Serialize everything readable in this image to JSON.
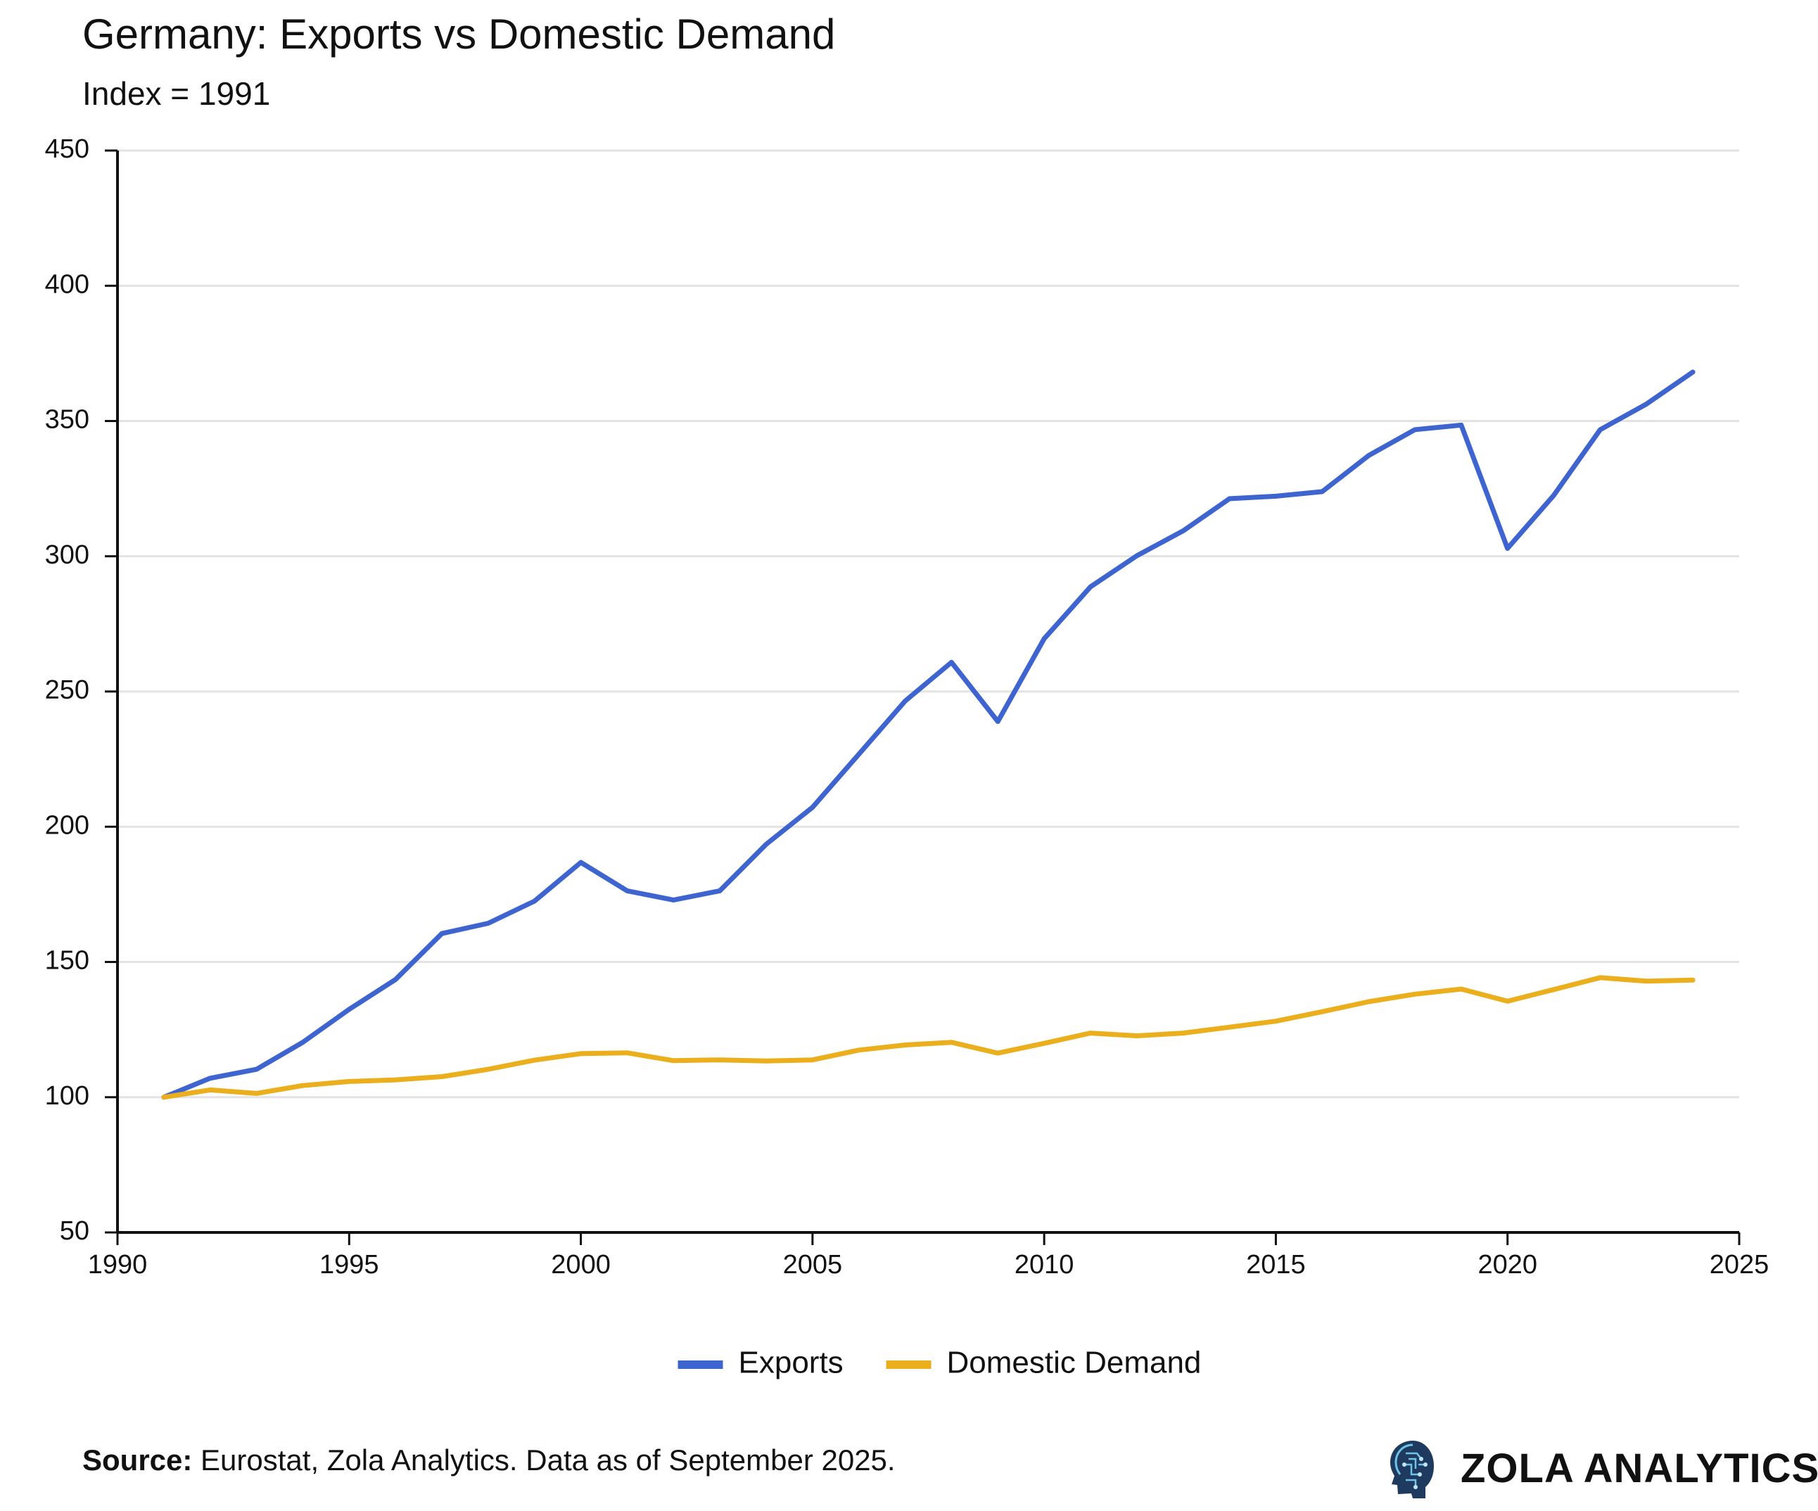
{
  "title": "Germany: Exports vs Domestic Demand",
  "subtitle": "Index = 1991",
  "source": {
    "label": "Source:",
    "text": " Eurostat, Zola Analytics. Data as of September 2025."
  },
  "brand": {
    "name": "ZOLA ANALYTICS",
    "logo_icon": "ai-head-icon"
  },
  "colors": {
    "exports": "#3D64CF",
    "domestic": "#EBAF1E",
    "grid": "#e3e3e3",
    "axis": "#111111"
  },
  "chart_data": {
    "type": "line",
    "title": "Germany: Exports vs Domestic Demand",
    "subtitle": "Index = 1991",
    "xlabel": "",
    "ylabel": "",
    "xlim": [
      1990,
      2025
    ],
    "ylim": [
      50,
      450
    ],
    "x_ticks": [
      1990,
      1995,
      2000,
      2005,
      2010,
      2015,
      2020,
      2025
    ],
    "y_ticks": [
      50,
      100,
      150,
      200,
      250,
      300,
      350,
      400,
      450
    ],
    "grid": "horizontal",
    "legend_position": "bottom-center",
    "x": [
      1991,
      1992,
      1993,
      1994,
      1995,
      1996,
      1997,
      1998,
      1999,
      2000,
      2001,
      2002,
      2003,
      2004,
      2005,
      2006,
      2007,
      2008,
      2009,
      2010,
      2011,
      2012,
      2013,
      2014,
      2015,
      2016,
      2017,
      2018,
      2019,
      2020,
      2021,
      2022,
      2023,
      2024
    ],
    "series": [
      {
        "name": "Exports",
        "color": "#3D64CF",
        "values": [
          100,
          107,
          110.3,
          120.3,
          132.5,
          143.5,
          160.5,
          164.3,
          172.5,
          186.8,
          176.3,
          172.9,
          176.3,
          193.5,
          207.2,
          226.8,
          246.5,
          260.8,
          238.9,
          269.5,
          288.7,
          300.2,
          309.4,
          321.3,
          322.2,
          323.9,
          337.2,
          346.8,
          348.5,
          302.9,
          322.6,
          346.8,
          356.3,
          368.1
        ]
      },
      {
        "name": "Domestic Demand",
        "color": "#EBAF1E",
        "values": [
          100,
          102.7,
          101.4,
          104.3,
          105.8,
          106.4,
          107.6,
          110.3,
          113.7,
          116.1,
          116.4,
          113.5,
          113.8,
          113.4,
          113.8,
          117.4,
          119.3,
          120.3,
          116.3,
          119.9,
          123.7,
          122.7,
          123.7,
          125.9,
          128.1,
          131.6,
          135.3,
          138.1,
          140,
          135.5,
          139.8,
          144.2,
          142.9,
          143.3
        ]
      }
    ]
  }
}
